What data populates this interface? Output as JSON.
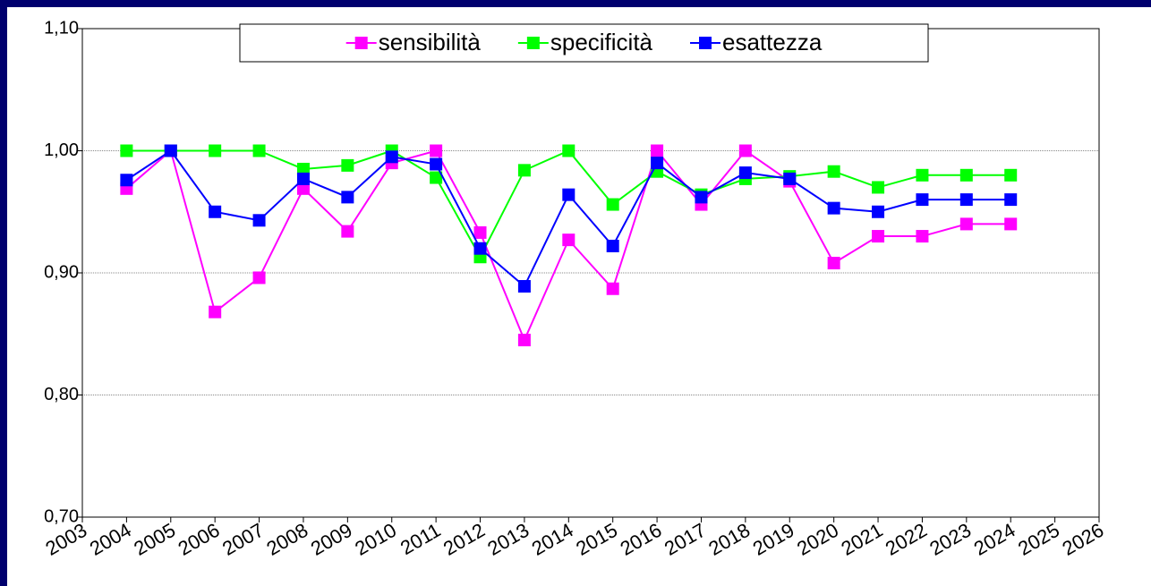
{
  "chart_data": {
    "type": "line",
    "categories": [
      "2003",
      "2004",
      "2005",
      "2006",
      "2007",
      "2008",
      "2009",
      "2010",
      "2011",
      "2012",
      "2013",
      "2014",
      "2015",
      "2016",
      "2017",
      "2018",
      "2019",
      "2020",
      "2021",
      "2022",
      "2023",
      "2024",
      "2025",
      "2026"
    ],
    "series": [
      {
        "name": "sensibilità",
        "color": "#ff00ff",
        "values": [
          null,
          0.969,
          1.0,
          0.868,
          0.896,
          0.969,
          0.934,
          0.99,
          1.0,
          0.933,
          0.845,
          0.927,
          0.887,
          1.0,
          0.956,
          1.0,
          0.975,
          0.908,
          0.93,
          0.93,
          0.94,
          0.94,
          null,
          null
        ]
      },
      {
        "name": "specificità",
        "color": "#00ff00",
        "values": [
          null,
          1.0,
          1.0,
          1.0,
          1.0,
          0.985,
          0.988,
          1.0,
          0.978,
          0.913,
          0.984,
          1.0,
          0.956,
          0.983,
          0.964,
          0.977,
          0.979,
          0.983,
          0.97,
          0.98,
          0.98,
          0.98,
          null,
          null
        ]
      },
      {
        "name": "esattezza",
        "color": "#0000ff",
        "values": [
          null,
          0.976,
          1.0,
          0.95,
          0.943,
          0.977,
          0.962,
          0.995,
          0.989,
          0.92,
          0.889,
          0.964,
          0.922,
          0.99,
          0.962,
          0.982,
          0.977,
          0.953,
          0.95,
          0.96,
          0.96,
          0.96,
          null,
          null
        ]
      }
    ],
    "ylim": [
      0.7,
      1.1
    ],
    "yticks": [
      {
        "value": 0.7,
        "label": "0,70"
      },
      {
        "value": 0.8,
        "label": "0,80"
      },
      {
        "value": 0.9,
        "label": "0,90"
      },
      {
        "value": 1.0,
        "label": "1,00"
      },
      {
        "value": 1.1,
        "label": "1,10"
      }
    ],
    "grid": true,
    "legend": "top"
  }
}
